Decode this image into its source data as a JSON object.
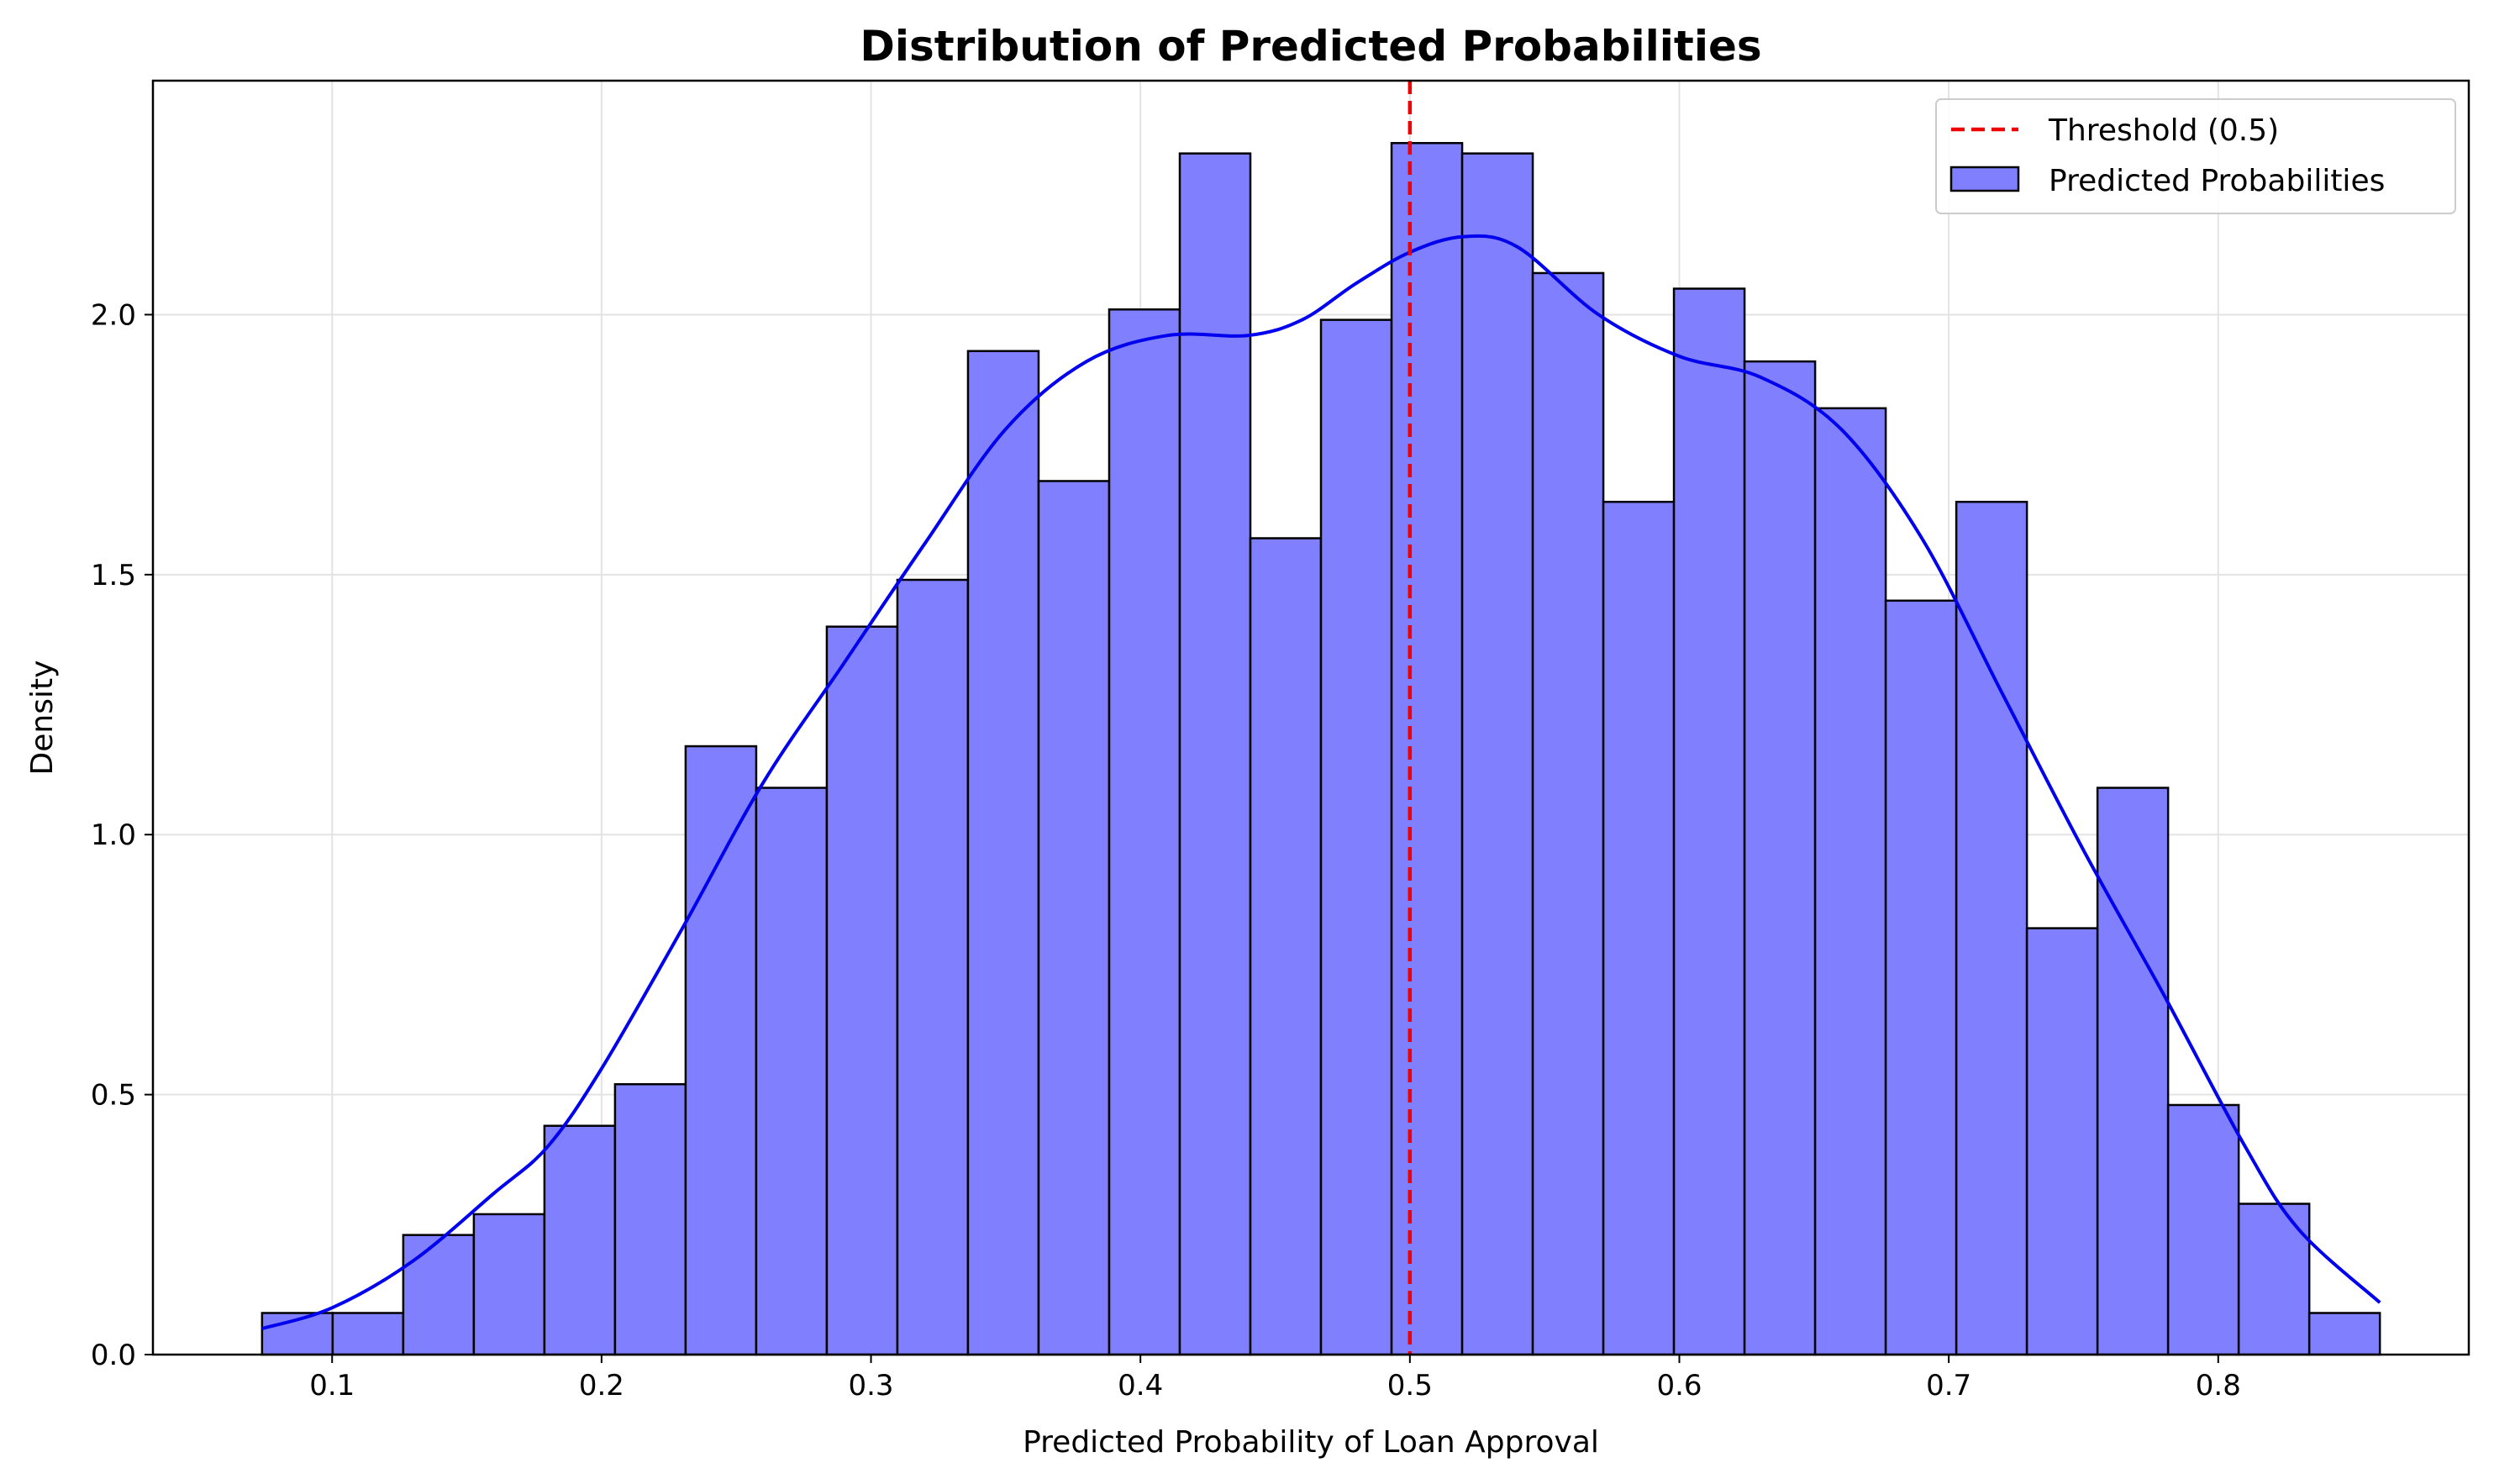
{
  "chart_data": {
    "type": "bar",
    "title": "Distribution of Predicted Probabilities",
    "xlabel": "Predicted Probability of Loan Approval",
    "ylabel": "Density",
    "xlim": [
      0.0335,
      0.893
    ],
    "ylim": [
      0,
      2.45
    ],
    "xticks": [
      0.1,
      0.2,
      0.3,
      0.4,
      0.5,
      0.6,
      0.7,
      0.8
    ],
    "xtick_labels": [
      "0.1",
      "0.2",
      "0.3",
      "0.4",
      "0.5",
      "0.6",
      "0.7",
      "0.8"
    ],
    "yticks": [
      0.0,
      0.5,
      1.0,
      1.5,
      2.0
    ],
    "ytick_labels": [
      "0.0",
      "0.5",
      "1.0",
      "1.5",
      "2.0"
    ],
    "grid": true,
    "legend_position": "top-right",
    "bins": {
      "start": 0.074,
      "width": 0.0262,
      "values": [
        0.08,
        0.08,
        0.23,
        0.27,
        0.44,
        0.52,
        1.17,
        1.09,
        1.4,
        1.49,
        1.93,
        1.68,
        2.01,
        2.31,
        1.57,
        1.99,
        2.33,
        2.31,
        2.08,
        1.64,
        2.05,
        1.91,
        1.82,
        1.45,
        1.64,
        0.82,
        1.09,
        0.48,
        0.29,
        0.08
      ],
      "fill": "#8080ff",
      "edge": "#000000"
    },
    "kde": {
      "x": [
        0.074,
        0.1,
        0.13,
        0.16,
        0.18,
        0.2,
        0.23,
        0.26,
        0.29,
        0.32,
        0.35,
        0.38,
        0.41,
        0.44,
        0.46,
        0.48,
        0.5,
        0.52,
        0.54,
        0.57,
        0.6,
        0.63,
        0.66,
        0.69,
        0.72,
        0.75,
        0.78,
        0.81,
        0.83,
        0.86
      ],
      "y": [
        0.05,
        0.09,
        0.18,
        0.31,
        0.4,
        0.55,
        0.82,
        1.1,
        1.33,
        1.56,
        1.78,
        1.91,
        1.96,
        1.96,
        1.99,
        2.06,
        2.12,
        2.15,
        2.13,
        2.0,
        1.92,
        1.88,
        1.78,
        1.57,
        1.27,
        0.97,
        0.69,
        0.4,
        0.24,
        0.1
      ],
      "color": "#0000ee"
    },
    "threshold": {
      "x": 0.5,
      "color": "#ee0000"
    },
    "legend": [
      {
        "label": "Threshold (0.5)",
        "kind": "dashed-line",
        "color": "#ee0000"
      },
      {
        "label": "Predicted Probabilities",
        "kind": "patch",
        "color": "#8080ff"
      }
    ]
  }
}
